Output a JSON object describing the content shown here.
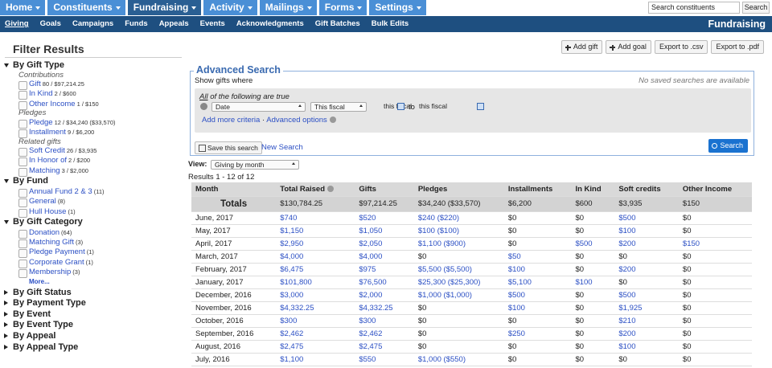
{
  "nav": {
    "tabs": [
      "Home",
      "Constituents",
      "Fundraising",
      "Activity",
      "Mailings",
      "Forms",
      "Settings"
    ],
    "active": 2,
    "search_placeholder": "Search constituents",
    "search_button": "Search"
  },
  "subnav": {
    "links": [
      "Giving",
      "Goals",
      "Campaigns",
      "Funds",
      "Appeals",
      "Events",
      "Acknowledgments",
      "Gift Batches",
      "Bulk Edits"
    ],
    "active": 0,
    "title": "Fundraising"
  },
  "sidebar": {
    "title": "Filter Results",
    "sections": [
      {
        "title": "By Gift Type",
        "groups": [
          {
            "label": "Contributions",
            "items": [
              {
                "label": "Gift",
                "count": "80 / $97,214.25"
              },
              {
                "label": "In Kind",
                "count": "2 / $600"
              },
              {
                "label": "Other Income",
                "count": "1 / $150"
              }
            ]
          },
          {
            "label": "Pledges",
            "items": [
              {
                "label": "Pledge",
                "count": "12 / $34,240 ($33,570)"
              },
              {
                "label": "Installment",
                "count": "9 / $6,200"
              }
            ]
          },
          {
            "label": "Related gifts",
            "items": [
              {
                "label": "Soft Credit",
                "count": "26 / $3,935"
              },
              {
                "label": "In Honor of",
                "count": "2 / $200"
              },
              {
                "label": "Matching",
                "count": "3 / $2,000"
              }
            ]
          }
        ]
      },
      {
        "title": "By Fund",
        "groups": [
          {
            "items": [
              {
                "label": "Annual Fund 2 & 3",
                "count": "(11)"
              },
              {
                "label": "General",
                "count": "(8)"
              },
              {
                "label": "Hull House",
                "count": "(1)"
              }
            ]
          }
        ]
      },
      {
        "title": "By Gift Category",
        "groups": [
          {
            "items": [
              {
                "label": "Donation",
                "count": "(64)"
              },
              {
                "label": "Matching Gift",
                "count": "(3)"
              },
              {
                "label": "Pledge Payment",
                "count": "(1)"
              },
              {
                "label": "Corporate Grant",
                "count": "(1)"
              },
              {
                "label": "Membership",
                "count": "(3)"
              }
            ]
          }
        ],
        "more": "More..."
      },
      {
        "title": "By Gift Status"
      },
      {
        "title": "By Payment Type"
      },
      {
        "title": "By Event"
      },
      {
        "title": "By Event Type"
      },
      {
        "title": "By Appeal"
      },
      {
        "title": "By Appeal Type"
      }
    ]
  },
  "actions": [
    "Add gift",
    "Add goal",
    "Export to .csv",
    "Export to .pdf"
  ],
  "search": {
    "legend": "Advanced Search",
    "show": "Show gifts where",
    "no_saved": "No saved searches are available",
    "match_all": "All",
    "match_rest": "of the following are true",
    "field": "Date",
    "operator": "This fiscal",
    "from": "this fiscal",
    "to_label": "to",
    "to": "this fiscal",
    "add": "Add more criteria",
    "separator": "·",
    "advanced": "Advanced options",
    "save": "Save this search",
    "new": "New Search",
    "submit": "Search"
  },
  "view": {
    "label": "View:",
    "value": "Giving by month"
  },
  "results": "Results 1 - 12 of 12",
  "table": {
    "columns": [
      "Month",
      "Total Raised",
      "Gifts",
      "Pledges",
      "Installments",
      "In Kind",
      "Soft credits",
      "Other Income"
    ],
    "totals": [
      "Totals",
      "$130,784.25",
      "$97,214.25",
      "$34,240 ($33,570)",
      "$6,200",
      "$600",
      "$3,935",
      "$150"
    ],
    "rows": [
      [
        "June, 2017",
        "$740",
        "$520",
        "$240 ($220)",
        "$0",
        "$0",
        "$500",
        "$0"
      ],
      [
        "May, 2017",
        "$1,150",
        "$1,050",
        "$100 ($100)",
        "$0",
        "$0",
        "$100",
        "$0"
      ],
      [
        "April, 2017",
        "$2,950",
        "$2,050",
        "$1,100 ($900)",
        "$0",
        "$500",
        "$200",
        "$150"
      ],
      [
        "March, 2017",
        "$4,000",
        "$4,000",
        "$0",
        "$50",
        "$0",
        "$0",
        "$0"
      ],
      [
        "February, 2017",
        "$6,475",
        "$975",
        "$5,500 ($5,500)",
        "$100",
        "$0",
        "$200",
        "$0"
      ],
      [
        "January, 2017",
        "$101,800",
        "$76,500",
        "$25,300 ($25,300)",
        "$5,100",
        "$100",
        "$0",
        "$0"
      ],
      [
        "December, 2016",
        "$3,000",
        "$2,000",
        "$1,000 ($1,000)",
        "$500",
        "$0",
        "$500",
        "$0"
      ],
      [
        "November, 2016",
        "$4,332.25",
        "$4,332.25",
        "$0",
        "$100",
        "$0",
        "$1,925",
        "$0"
      ],
      [
        "October, 2016",
        "$300",
        "$300",
        "$0",
        "$0",
        "$0",
        "$210",
        "$0"
      ],
      [
        "September, 2016",
        "$2,462",
        "$2,462",
        "$0",
        "$250",
        "$0",
        "$200",
        "$0"
      ],
      [
        "August, 2016",
        "$2,475",
        "$2,475",
        "$0",
        "$0",
        "$0",
        "$100",
        "$0"
      ],
      [
        "July, 2016",
        "$1,100",
        "$550",
        "$1,000 ($550)",
        "$0",
        "$0",
        "$0",
        "$0"
      ]
    ]
  }
}
